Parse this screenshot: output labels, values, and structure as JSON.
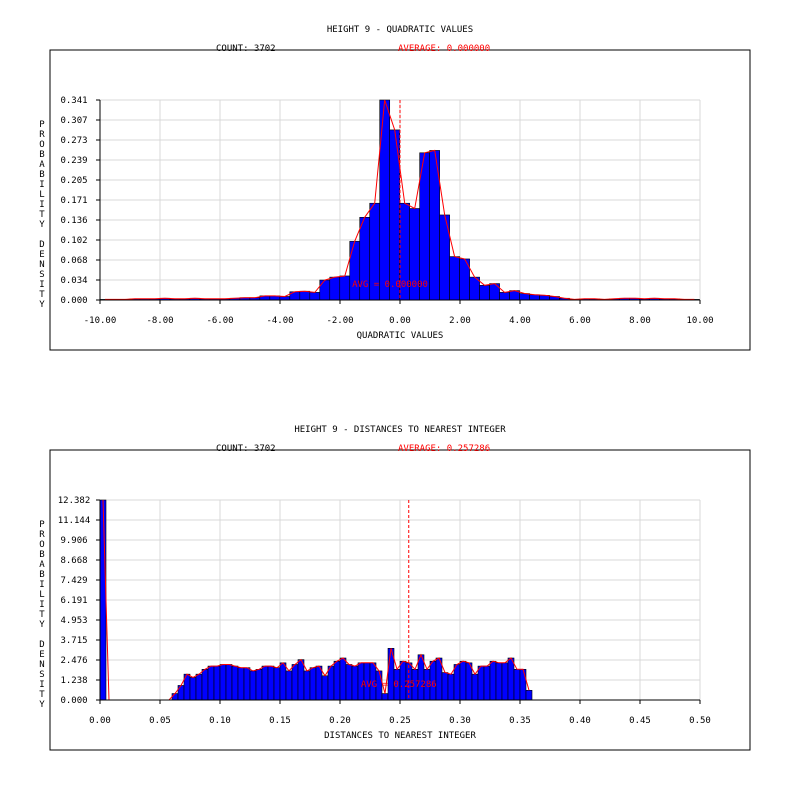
{
  "charts": [
    {
      "title": "HEIGHT 9 - QUADRATIC VALUES",
      "count_label": "COUNT: 3702",
      "average_label": "AVERAGE: 0.000000",
      "avg_marker_label": "AVG = 0.000000",
      "xlabel": "QUADRATIC VALUES",
      "ylabel": "PROBABILITY DENSITY",
      "x_ticks": [
        "-10.00",
        "-8.00",
        "-6.00",
        "-4.00",
        "-2.00",
        "0.00",
        "2.00",
        "4.00",
        "6.00",
        "8.00",
        "10.00"
      ],
      "y_ticks": [
        "0.000",
        "0.034",
        "0.068",
        "0.102",
        "0.136",
        "0.171",
        "0.205",
        "0.239",
        "0.273",
        "0.307",
        "0.341"
      ]
    },
    {
      "title": "HEIGHT 9 - DISTANCES TO NEAREST INTEGER",
      "count_label": "COUNT: 3702",
      "average_label": "AVERAGE: 0.257286",
      "avg_marker_label": "AVG = 0.257286",
      "xlabel": "DISTANCES TO NEAREST INTEGER",
      "ylabel": "PROBABILITY DENSITY",
      "x_ticks": [
        "0.00",
        "0.05",
        "0.10",
        "0.15",
        "0.20",
        "0.25",
        "0.30",
        "0.35",
        "0.40",
        "0.45",
        "0.50"
      ],
      "y_ticks": [
        "0.000",
        "1.238",
        "2.476",
        "3.715",
        "4.953",
        "6.191",
        "7.429",
        "8.668",
        "9.906",
        "11.144",
        "12.382"
      ]
    }
  ],
  "colors": {
    "bar": "#0000ff",
    "line": "#ff0000",
    "grid": "#d9d9d9"
  },
  "chart_data": [
    {
      "type": "bar",
      "title": "HEIGHT 9 - QUADRATIC VALUES",
      "xlabel": "QUADRATIC VALUES",
      "ylabel": "PROBABILITY DENSITY",
      "xlim": [
        -10,
        10
      ],
      "ylim": [
        0,
        0.341
      ],
      "bin_width": 0.333,
      "average": 0.0,
      "count": 3702,
      "grid": true,
      "bins_start": -10,
      "values": [
        0.001,
        0.001,
        0.001,
        0.002,
        0.002,
        0.002,
        0.003,
        0.002,
        0.002,
        0.003,
        0.002,
        0.002,
        0.002,
        0.003,
        0.004,
        0.004,
        0.007,
        0.007,
        0.006,
        0.014,
        0.015,
        0.013,
        0.034,
        0.039,
        0.041,
        0.1,
        0.141,
        0.165,
        0.341,
        0.29,
        0.165,
        0.156,
        0.251,
        0.255,
        0.145,
        0.074,
        0.07,
        0.039,
        0.025,
        0.028,
        0.013,
        0.016,
        0.011,
        0.009,
        0.008,
        0.006,
        0.003,
        0.001,
        0.002,
        0.002,
        0.001,
        0.002,
        0.003,
        0.003,
        0.002,
        0.003,
        0.002,
        0.002,
        0.001,
        0.001
      ]
    },
    {
      "type": "bar",
      "title": "HEIGHT 9 - DISTANCES TO NEAREST INTEGER",
      "xlabel": "DISTANCES TO NEAREST INTEGER",
      "ylabel": "PROBABILITY DENSITY",
      "xlim": [
        0,
        0.5
      ],
      "ylim": [
        0,
        12.382
      ],
      "bin_width": 0.005,
      "average": 0.257286,
      "count": 3702,
      "grid": true,
      "bins_start": 0,
      "values": [
        12.382,
        0.0,
        0.0,
        0.0,
        0.0,
        0.0,
        0.0,
        0.0,
        0.0,
        0.0,
        0.0,
        0.0,
        0.4,
        0.9,
        1.6,
        1.4,
        1.6,
        1.9,
        2.1,
        2.1,
        2.2,
        2.2,
        2.1,
        2.0,
        2.0,
        1.8,
        1.9,
        2.1,
        2.1,
        2.0,
        2.3,
        1.8,
        2.2,
        2.5,
        1.8,
        2.0,
        2.1,
        1.5,
        2.1,
        2.4,
        2.6,
        2.2,
        2.1,
        2.3,
        2.3,
        2.3,
        1.8,
        0.4,
        3.2,
        1.9,
        2.4,
        2.3,
        1.9,
        2.8,
        1.9,
        2.4,
        2.6,
        1.7,
        1.6,
        2.2,
        2.4,
        2.3,
        1.6,
        2.1,
        2.1,
        2.4,
        2.3,
        2.3,
        2.6,
        1.9,
        1.9,
        0.6
      ]
    }
  ]
}
